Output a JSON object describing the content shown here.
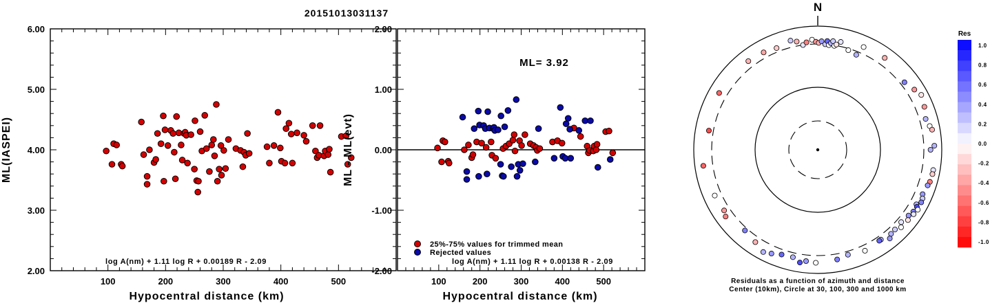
{
  "title": "20151013031137",
  "colors": {
    "used": "#d40000",
    "rejected": "#0a0aa8",
    "pos_max": "#0000ff",
    "neg_max": "#ff0000"
  },
  "chart_data": [
    {
      "type": "scatter",
      "title": "",
      "xlabel": "Hypocentral distance (km)",
      "ylabel": "ML(IASPEI)",
      "xlim": [
        0,
        600
      ],
      "ylim": [
        2.0,
        6.0
      ],
      "xticks": [
        "100",
        "200",
        "300",
        "400",
        "500"
      ],
      "yticks": [
        "2.00",
        "3.00",
        "4.00",
        "5.00",
        "6.00"
      ],
      "formula": "log A(nm) + 1.11 log R + 0.00189 R - 2.09",
      "series": [
        {
          "marker": "red",
          "points": [
            [
              97,
              3.98
            ],
            [
              107,
              3.76
            ],
            [
              110,
              4.1
            ],
            [
              115,
              4.08
            ],
            [
              123,
              3.76
            ],
            [
              125,
              3.73
            ],
            [
              158,
              4.46
            ],
            [
              162,
              3.92
            ],
            [
              168,
              3.56
            ],
            [
              168,
              3.43
            ],
            [
              172,
              4.0
            ],
            [
              180,
              3.79
            ],
            [
              183,
              3.84
            ],
            [
              186,
              4.27
            ],
            [
              192,
              4.1
            ],
            [
              196,
              4.56
            ],
            [
              197,
              3.48
            ],
            [
              199,
              4.33
            ],
            [
              204,
              4.07
            ],
            [
              209,
              4.32
            ],
            [
              213,
              4.27
            ],
            [
              215,
              3.96
            ],
            [
              217,
              3.52
            ],
            [
              219,
              4.55
            ],
            [
              223,
              4.28
            ],
            [
              227,
              4.08
            ],
            [
              229,
              3.83
            ],
            [
              232,
              4.27
            ],
            [
              234,
              4.29
            ],
            [
              236,
              4.24
            ],
            [
              238,
              3.78
            ],
            [
              244,
              4.25
            ],
            [
              250,
              3.68
            ],
            [
              251,
              4.48
            ],
            [
              254,
              3.49
            ],
            [
              256,
              3.3
            ],
            [
              257,
              3.48
            ],
            [
              260,
              4.3
            ],
            [
              263,
              3.98
            ],
            [
              268,
              4.57
            ],
            [
              271,
              4.02
            ],
            [
              276,
              3.64
            ],
            [
              280,
              4.08
            ],
            [
              283,
              4.17
            ],
            [
              285,
              3.9
            ],
            [
              288,
              4.75
            ],
            [
              290,
              3.48
            ],
            [
              293,
              3.68
            ],
            [
              296,
              4.07
            ],
            [
              297,
              3.58
            ],
            [
              301,
              3.99
            ],
            [
              304,
              3.69
            ],
            [
              309,
              4.17
            ],
            [
              322,
              4.02
            ],
            [
              330,
              3.99
            ],
            [
              334,
              3.72
            ],
            [
              336,
              3.96
            ],
            [
              339,
              3.91
            ],
            [
              342,
              4.27
            ],
            [
              345,
              3.94
            ],
            [
              376,
              4.05
            ],
            [
              380,
              3.78
            ],
            [
              388,
              4.07
            ],
            [
              395,
              4.62
            ],
            [
              399,
              4.03
            ],
            [
              401,
              3.81
            ],
            [
              407,
              3.78
            ],
            [
              409,
              4.35
            ],
            [
              414,
              4.44
            ],
            [
              418,
              4.26
            ],
            [
              420,
              3.78
            ],
            [
              428,
              4.28
            ],
            [
              440,
              4.24
            ],
            [
              444,
              4.14
            ],
            [
              455,
              4.4
            ],
            [
              460,
              3.98
            ],
            [
              463,
              3.87
            ],
            [
              466,
              3.91
            ],
            [
              468,
              4.4
            ],
            [
              475,
              3.9
            ],
            [
              477,
              3.98
            ],
            [
              482,
              3.92
            ],
            [
              484,
              4.01
            ],
            [
              486,
              3.63
            ],
            [
              505,
              4.22
            ],
            [
              513,
              4.23
            ],
            [
              516,
              3.76
            ],
            [
              522,
              3.87
            ]
          ]
        }
      ]
    },
    {
      "type": "scatter",
      "title": "",
      "xlabel": "Hypocentral distance (km)",
      "ylabel": "ML - ML(evt)",
      "xlim": [
        0,
        600
      ],
      "ylim": [
        -2.0,
        2.0
      ],
      "xticks": [
        "100",
        "200",
        "300",
        "400",
        "500"
      ],
      "yticks": [
        "-2.00",
        "-1.00",
        "0.00",
        "1.00",
        "2.00"
      ],
      "annotation": "ML= 3.92",
      "formula": "log A(nm) + 1.11 log R + 0.00138 R - 2.09",
      "legend": [
        {
          "label": "25%-75% values for trimmed mean",
          "color": "#d40000"
        },
        {
          "label": "Rejected values",
          "color": "#0a0aa8"
        }
      ],
      "series": [
        {
          "name": "25%-75% values for trimmed mean",
          "points": [
            [
              97,
              0.03
            ],
            [
              107,
              -0.2
            ],
            [
              110,
              0.15
            ],
            [
              115,
              0.13
            ],
            [
              123,
              -0.19
            ],
            [
              125,
              -0.22
            ],
            [
              162,
              0.0
            ],
            [
              172,
              0.08
            ],
            [
              180,
              -0.13
            ],
            [
              183,
              -0.08
            ],
            [
              192,
              0.13
            ],
            [
              204,
              0.11
            ],
            [
              215,
              0.04
            ],
            [
              227,
              0.13
            ],
            [
              229,
              -0.09
            ],
            [
              238,
              -0.14
            ],
            [
              256,
              0.02
            ],
            [
              263,
              0.06
            ],
            [
              271,
              0.1
            ],
            [
              280,
              0.16
            ],
            [
              283,
              0.25
            ],
            [
              285,
              -0.02
            ],
            [
              296,
              0.15
            ],
            [
              301,
              0.07
            ],
            [
              309,
              0.25
            ],
            [
              322,
              0.1
            ],
            [
              330,
              0.07
            ],
            [
              336,
              0.04
            ],
            [
              339,
              -0.01
            ],
            [
              345,
              0.02
            ],
            [
              376,
              0.13
            ],
            [
              388,
              0.15
            ],
            [
              399,
              0.11
            ],
            [
              428,
              0.36
            ],
            [
              444,
              0.22
            ],
            [
              460,
              0.06
            ],
            [
              463,
              -0.05
            ],
            [
              466,
              -0.01
            ],
            [
              475,
              -0.02
            ],
            [
              477,
              0.06
            ],
            [
              482,
              0.0
            ],
            [
              484,
              0.09
            ],
            [
              505,
              0.3
            ],
            [
              513,
              0.31
            ],
            [
              522,
              -0.05
            ]
          ]
        },
        {
          "name": "Rejected values",
          "points": [
            [
              158,
              0.54
            ],
            [
              168,
              -0.36
            ],
            [
              168,
              -0.49
            ],
            [
              186,
              0.35
            ],
            [
              196,
              0.64
            ],
            [
              197,
              -0.44
            ],
            [
              199,
              0.41
            ],
            [
              209,
              0.4
            ],
            [
              213,
              0.35
            ],
            [
              217,
              -0.4
            ],
            [
              219,
              0.63
            ],
            [
              223,
              0.36
            ],
            [
              232,
              0.35
            ],
            [
              234,
              0.37
            ],
            [
              236,
              0.32
            ],
            [
              244,
              0.33
            ],
            [
              250,
              -0.24
            ],
            [
              251,
              0.56
            ],
            [
              254,
              -0.43
            ],
            [
              257,
              -0.44
            ],
            [
              260,
              0.38
            ],
            [
              268,
              0.65
            ],
            [
              276,
              -0.28
            ],
            [
              288,
              0.83
            ],
            [
              290,
              -0.44
            ],
            [
              293,
              -0.24
            ],
            [
              297,
              -0.34
            ],
            [
              304,
              -0.23
            ],
            [
              334,
              -0.2
            ],
            [
              342,
              0.35
            ],
            [
              380,
              -0.14
            ],
            [
              395,
              0.7
            ],
            [
              401,
              -0.11
            ],
            [
              407,
              -0.14
            ],
            [
              409,
              0.43
            ],
            [
              414,
              0.52
            ],
            [
              418,
              0.34
            ],
            [
              420,
              -0.14
            ],
            [
              440,
              0.32
            ],
            [
              455,
              0.48
            ],
            [
              468,
              0.48
            ],
            [
              486,
              -0.29
            ],
            [
              516,
              -0.16
            ]
          ]
        }
      ]
    }
  ],
  "polar": {
    "north_label": "N",
    "caption_line1": "Residuals as a function of azimuth and distance",
    "caption_line2": "Center (10km), Circle at 30, 100, 300 and 1000 km",
    "stations": [
      [
        322,
        1.9,
        -0.3
      ],
      [
        331,
        1.88,
        -0.35
      ],
      [
        338,
        1.85,
        -0.2
      ],
      [
        346,
        1.9,
        0.2
      ],
      [
        349,
        1.86,
        -0.3
      ],
      [
        352,
        1.78,
        0.1
      ],
      [
        354,
        1.82,
        -0.5
      ],
      [
        357,
        1.86,
        0.0
      ],
      [
        359,
        1.82,
        -0.4
      ],
      [
        0.5,
        1.8,
        -0.3
      ],
      [
        2,
        1.83,
        0.4
      ],
      [
        4,
        1.78,
        0.2
      ],
      [
        5,
        1.84,
        0.6
      ],
      [
        6,
        1.77,
        0.0
      ],
      [
        7,
        1.81,
        0.3
      ],
      [
        8,
        1.85,
        0.2
      ],
      [
        9,
        1.77,
        0.0
      ],
      [
        10,
        1.8,
        -0.1
      ],
      [
        12,
        1.86,
        0.1
      ],
      [
        17,
        1.75,
        0.0
      ],
      [
        22,
        1.72,
        0.3
      ],
      [
        24,
        1.9,
        0.0
      ],
      [
        36,
        1.92,
        -0.3
      ],
      [
        52,
        1.85,
        0.5
      ],
      [
        58,
        1.92,
        -0.4
      ],
      [
        62,
        1.98,
        -0.1
      ],
      [
        68,
        1.94,
        -0.4
      ],
      [
        74,
        1.89,
        0.3
      ],
      [
        78,
        1.93,
        0.0
      ],
      [
        80,
        1.96,
        -0.3
      ],
      [
        88,
        1.97,
        0.3
      ],
      [
        90,
        1.9,
        0.3
      ],
      [
        100,
        1.98,
        0.1
      ],
      [
        102,
        1.98,
        -0.2
      ],
      [
        106,
        1.97,
        -0.5
      ],
      [
        108,
        1.95,
        0.4
      ],
      [
        113,
        1.92,
        0.4
      ],
      [
        115,
        1.95,
        0.2
      ],
      [
        117,
        1.96,
        0.5
      ],
      [
        119,
        1.9,
        0.3
      ],
      [
        120,
        1.93,
        0.7
      ],
      [
        121,
        1.97,
        0.0
      ],
      [
        123,
        1.92,
        0.5
      ],
      [
        124,
        1.95,
        0.1
      ],
      [
        126,
        1.89,
        0.4
      ],
      [
        128,
        1.93,
        -0.1
      ],
      [
        131,
        1.86,
        0.1
      ],
      [
        133,
        1.92,
        0.0
      ],
      [
        136,
        1.87,
        0.2
      ],
      [
        139,
        1.88,
        0.3
      ],
      [
        141,
        1.93,
        0.4
      ],
      [
        145,
        1.85,
        0.3
      ],
      [
        146,
        1.85,
        0.6
      ],
      [
        155,
        1.88,
        0.0
      ],
      [
        164,
        1.84,
        0.3
      ],
      [
        170,
        1.88,
        0.5
      ],
      [
        181,
        1.91,
        0.0
      ],
      [
        186,
        1.89,
        0.4
      ],
      [
        189,
        1.93,
        0.7
      ],
      [
        193,
        1.86,
        0.3
      ],
      [
        199,
        1.87,
        0.6
      ],
      [
        204,
        1.92,
        0.4
      ],
      [
        208,
        1.96,
        0.3
      ],
      [
        214,
        1.88,
        -0.3
      ],
      [
        222,
        1.83,
        0.5
      ],
      [
        234,
        1.92,
        -0.5
      ],
      [
        237,
        1.88,
        -0.4
      ],
      [
        246,
        1.9,
        0.0
      ],
      [
        262,
        1.95,
        -0.6
      ],
      [
        280,
        1.86,
        -0.7
      ],
      [
        300,
        1.92,
        -0.6
      ]
    ],
    "colorbar": {
      "title": "Res",
      "labels": [
        "1.0",
        "0.8",
        "0.6",
        "0.4",
        "0.2",
        "0.0",
        "-0.2",
        "-0.4",
        "-0.6",
        "-0.8",
        "-1.0"
      ]
    }
  }
}
